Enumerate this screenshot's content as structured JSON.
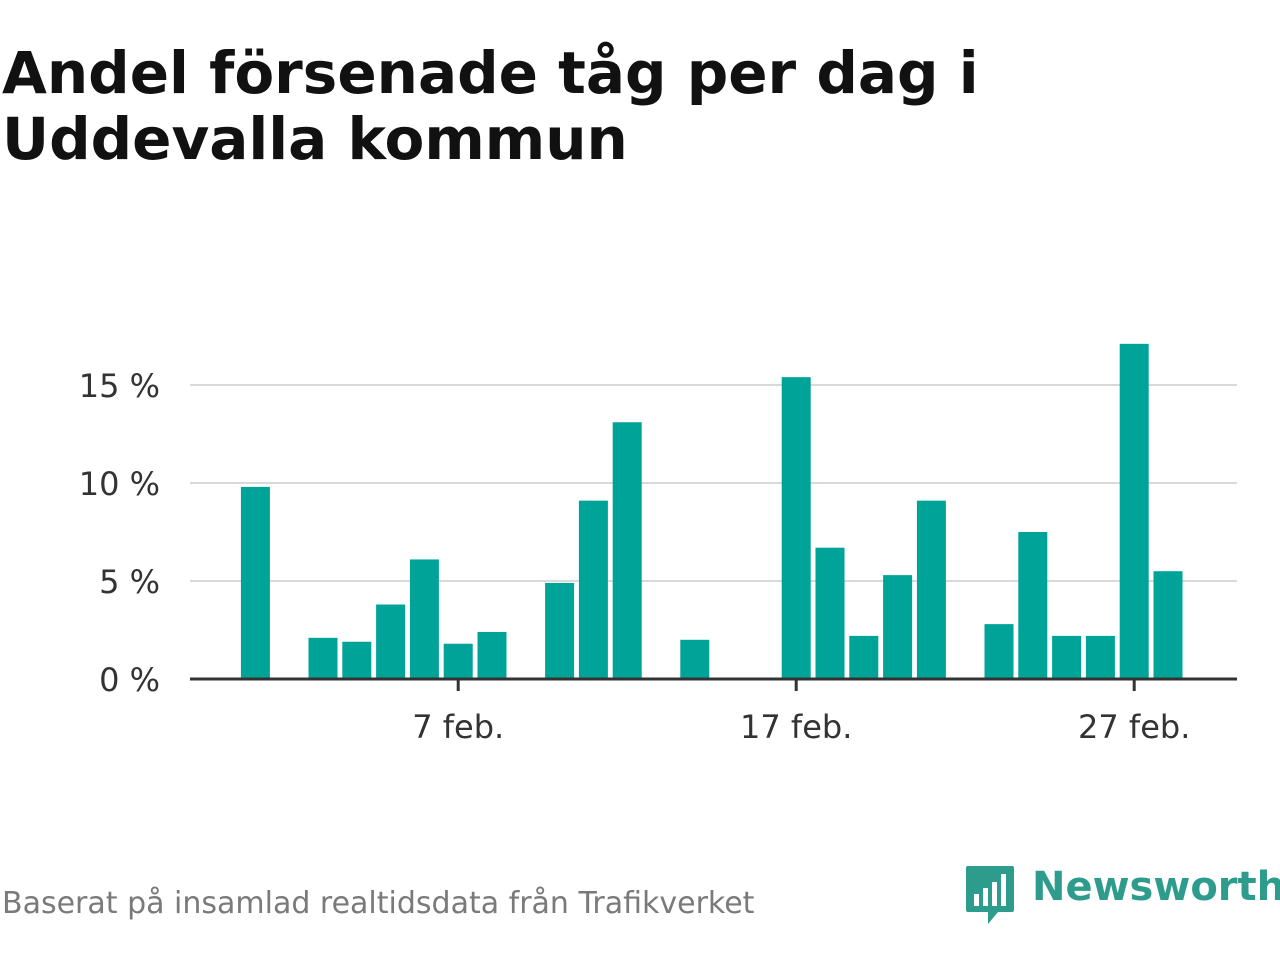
{
  "title": "Andel försenade tåg per dag i Uddevalla kommun",
  "colors": {
    "bar": "#00a398",
    "grid": "#d9d9d9",
    "axis": "#333333",
    "brand": "#2e9c8c"
  },
  "chart_data": {
    "type": "bar",
    "x_axis": "date",
    "categories": [
      "1 feb.",
      "2 feb.",
      "3 feb.",
      "4 feb.",
      "5 feb.",
      "6 feb.",
      "7 feb.",
      "8 feb.",
      "9 feb.",
      "10 feb.",
      "11 feb.",
      "12 feb.",
      "13 feb.",
      "14 feb.",
      "15 feb.",
      "16 feb.",
      "17 feb.",
      "18 feb.",
      "19 feb.",
      "20 feb.",
      "21 feb.",
      "22 feb.",
      "23 feb.",
      "24 feb.",
      "25 feb.",
      "26 feb.",
      "27 feb.",
      "28 feb."
    ],
    "values": [
      9.8,
      0,
      2.1,
      1.9,
      3.8,
      6.1,
      1.8,
      2.4,
      0,
      4.9,
      9.1,
      13.1,
      0,
      2.0,
      0,
      0,
      15.4,
      6.7,
      2.2,
      5.3,
      9.1,
      0,
      2.8,
      7.5,
      2.2,
      2.2,
      17.1,
      5.5
    ],
    "ylim": [
      0,
      17.5
    ],
    "yticks": [
      0,
      5,
      10,
      15
    ],
    "ytick_labels": [
      "0 %",
      "5 %",
      "10 %",
      "15 %"
    ],
    "xticks": [
      {
        "category": "7 feb.",
        "label": "7 feb."
      },
      {
        "category": "17 feb.",
        "label": "17 feb."
      },
      {
        "category": "27 feb.",
        "label": "27 feb."
      }
    ],
    "grid": true,
    "series": [
      {
        "values_ref": "values"
      }
    ]
  },
  "footer": {
    "source": "Baserat på insamlad realtidsdata från Trafikverket",
    "brand_name": "Newsworthy",
    "brand_icon": "newsworthy-logo-icon"
  }
}
